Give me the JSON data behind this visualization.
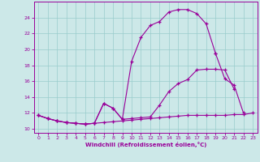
{
  "xlabel": "Windchill (Refroidissement éolien,°C)",
  "bg_color": "#cce8e8",
  "line_color": "#990099",
  "grid_color": "#99cccc",
  "x_hours": [
    0,
    1,
    2,
    3,
    4,
    5,
    6,
    7,
    8,
    9,
    10,
    11,
    12,
    13,
    14,
    15,
    16,
    17,
    18,
    19,
    20,
    21,
    22,
    23
  ],
  "series1": [
    11.7,
    11.3,
    11.0,
    10.8,
    10.7,
    10.6,
    10.7,
    10.8,
    10.9,
    11.0,
    11.1,
    11.2,
    11.3,
    11.4,
    11.5,
    11.6,
    11.7,
    11.7,
    11.7,
    11.7,
    11.7,
    11.8,
    11.8,
    12.0
  ],
  "series2_x": [
    0,
    1,
    2,
    3,
    4,
    5,
    6,
    7,
    8,
    9,
    10,
    11,
    12,
    13,
    14,
    15,
    16,
    17,
    18,
    19,
    20,
    21
  ],
  "series2_y": [
    11.7,
    11.3,
    11.0,
    10.8,
    10.7,
    10.6,
    10.7,
    13.2,
    12.6,
    11.2,
    11.3,
    11.4,
    11.5,
    13.0,
    14.7,
    15.7,
    16.2,
    17.4,
    17.5,
    17.5,
    17.4,
    15.0
  ],
  "series3_x": [
    0,
    1,
    2,
    3,
    4,
    5,
    6,
    7,
    8,
    9,
    10,
    11,
    12,
    13,
    14,
    15,
    16,
    17,
    18,
    19
  ],
  "series3_y": [
    11.7,
    11.3,
    11.0,
    10.8,
    10.7,
    10.6,
    10.7,
    13.2,
    12.6,
    11.2,
    18.5,
    21.5,
    23.0,
    23.5,
    24.7,
    25.0,
    25.0,
    24.5,
    23.2,
    19.5
  ],
  "series4_x": [
    19,
    20,
    21,
    22
  ],
  "series4_y": [
    19.5,
    16.3,
    15.5,
    12.0
  ],
  "ylim": [
    9.5,
    26.0
  ],
  "xlim": [
    -0.5,
    23.5
  ],
  "yticks": [
    10,
    12,
    14,
    16,
    18,
    20,
    22,
    24
  ],
  "xticks": [
    0,
    1,
    2,
    3,
    4,
    5,
    6,
    7,
    8,
    9,
    10,
    11,
    12,
    13,
    14,
    15,
    16,
    17,
    18,
    19,
    20,
    21,
    22,
    23
  ]
}
